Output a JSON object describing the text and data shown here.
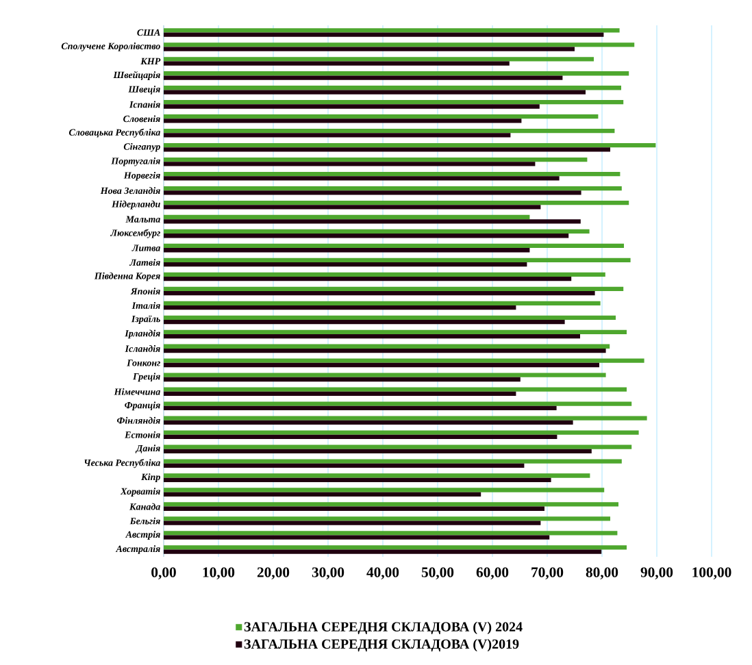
{
  "chart_data": {
    "type": "bar",
    "orientation": "horizontal",
    "grid": "x",
    "legend": "bottom",
    "categories": [
      "США",
      "Сполучене Королівство",
      "КНР",
      "Швейцарія",
      "Швеція",
      "Іспанія",
      "Словенія",
      "Словацька Республіка",
      "Сінгапур",
      "Португалія",
      "Норвегія",
      "Нова Зеландія",
      "Нідерланди",
      "Мальта",
      "Люксембург",
      "Литва",
      "Латвія",
      "Південна Корея",
      "Японія",
      "Італія",
      "Ізраїль",
      "Ірландія",
      "Ісландія",
      "Гонконг",
      "Греція",
      "Німеччина",
      "Франція",
      "Фінляндія",
      "Естонія",
      "Данія",
      "Чеська Республіка",
      "Кіпр",
      "Хорватія",
      "Канада",
      "Бельгія",
      "Австрія",
      "Австралія"
    ],
    "series": [
      {
        "name": "ЗАГАЛЬНА СЕРЕДНЯ СКЛАДОВА (V)  2024",
        "color": "#4ea72e",
        "values": [
          83.2,
          85.9,
          78.5,
          84.9,
          83.5,
          83.9,
          79.3,
          82.3,
          89.8,
          77.3,
          83.3,
          83.6,
          84.9,
          66.8,
          77.7,
          84.0,
          85.2,
          80.6,
          83.9,
          79.7,
          82.5,
          84.5,
          81.4,
          87.7,
          80.7,
          84.5,
          85.4,
          88.2,
          86.7,
          85.4,
          83.6,
          77.8,
          80.4,
          83.0,
          81.5,
          82.8,
          84.5
        ]
      },
      {
        "name": "ЗАГАЛЬНА СЕРЕДНЯ СКЛАДОВА (V)2019",
        "color": "#20000f",
        "values": [
          80.3,
          75.0,
          63.1,
          72.8,
          77.0,
          68.6,
          65.3,
          63.3,
          81.5,
          67.8,
          72.2,
          76.2,
          68.8,
          76.1,
          73.9,
          66.8,
          66.3,
          74.4,
          78.7,
          64.3,
          73.2,
          76.0,
          80.7,
          79.5,
          65.1,
          64.3,
          71.7,
          74.7,
          71.8,
          78.1,
          65.8,
          70.7,
          57.9,
          69.5,
          68.8,
          70.4,
          79.9
        ]
      }
    ],
    "xlim": [
      0,
      100
    ],
    "xticks": [
      {
        "value": 0,
        "label": "0,00"
      },
      {
        "value": 10,
        "label": "10,00"
      },
      {
        "value": 20,
        "label": "20,00"
      },
      {
        "value": 30,
        "label": "30,00"
      },
      {
        "value": 40,
        "label": "40,00"
      },
      {
        "value": 50,
        "label": "50,00"
      },
      {
        "value": 60,
        "label": "60,00"
      },
      {
        "value": 70,
        "label": "70,00"
      },
      {
        "value": 80,
        "label": "80,00"
      },
      {
        "value": 90,
        "label": "90,00"
      },
      {
        "value": 100,
        "label": "100,00"
      }
    ]
  }
}
